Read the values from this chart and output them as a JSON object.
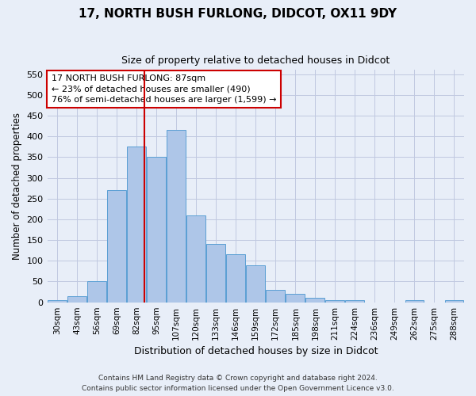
{
  "title1": "17, NORTH BUSH FURLONG, DIDCOT, OX11 9DY",
  "title2": "Size of property relative to detached houses in Didcot",
  "xlabel": "Distribution of detached houses by size in Didcot",
  "ylabel": "Number of detached properties",
  "categories": [
    "30sqm",
    "43sqm",
    "56sqm",
    "69sqm",
    "82sqm",
    "95sqm",
    "107sqm",
    "120sqm",
    "133sqm",
    "146sqm",
    "159sqm",
    "172sqm",
    "185sqm",
    "198sqm",
    "211sqm",
    "224sqm",
    "236sqm",
    "249sqm",
    "262sqm",
    "275sqm",
    "288sqm"
  ],
  "bar_values": [
    5,
    15,
    50,
    270,
    375,
    350,
    415,
    210,
    140,
    115,
    90,
    30,
    20,
    10,
    5,
    5,
    0,
    0,
    5,
    0,
    5
  ],
  "bar_color": "#aec6e8",
  "bar_edge_color": "#5a9fd4",
  "vline_color": "#cc0000",
  "annotation_text": "17 NORTH BUSH FURLONG: 87sqm\n← 23% of detached houses are smaller (490)\n76% of semi-detached houses are larger (1,599) →",
  "ylim": [
    0,
    560
  ],
  "yticks": [
    0,
    50,
    100,
    150,
    200,
    250,
    300,
    350,
    400,
    450,
    500,
    550
  ],
  "footer1": "Contains HM Land Registry data © Crown copyright and database right 2024.",
  "footer2": "Contains public sector information licensed under the Open Government Licence v3.0.",
  "bg_color": "#e8eef8",
  "grid_color": "#c0c8e0",
  "vline_index": 4.38
}
